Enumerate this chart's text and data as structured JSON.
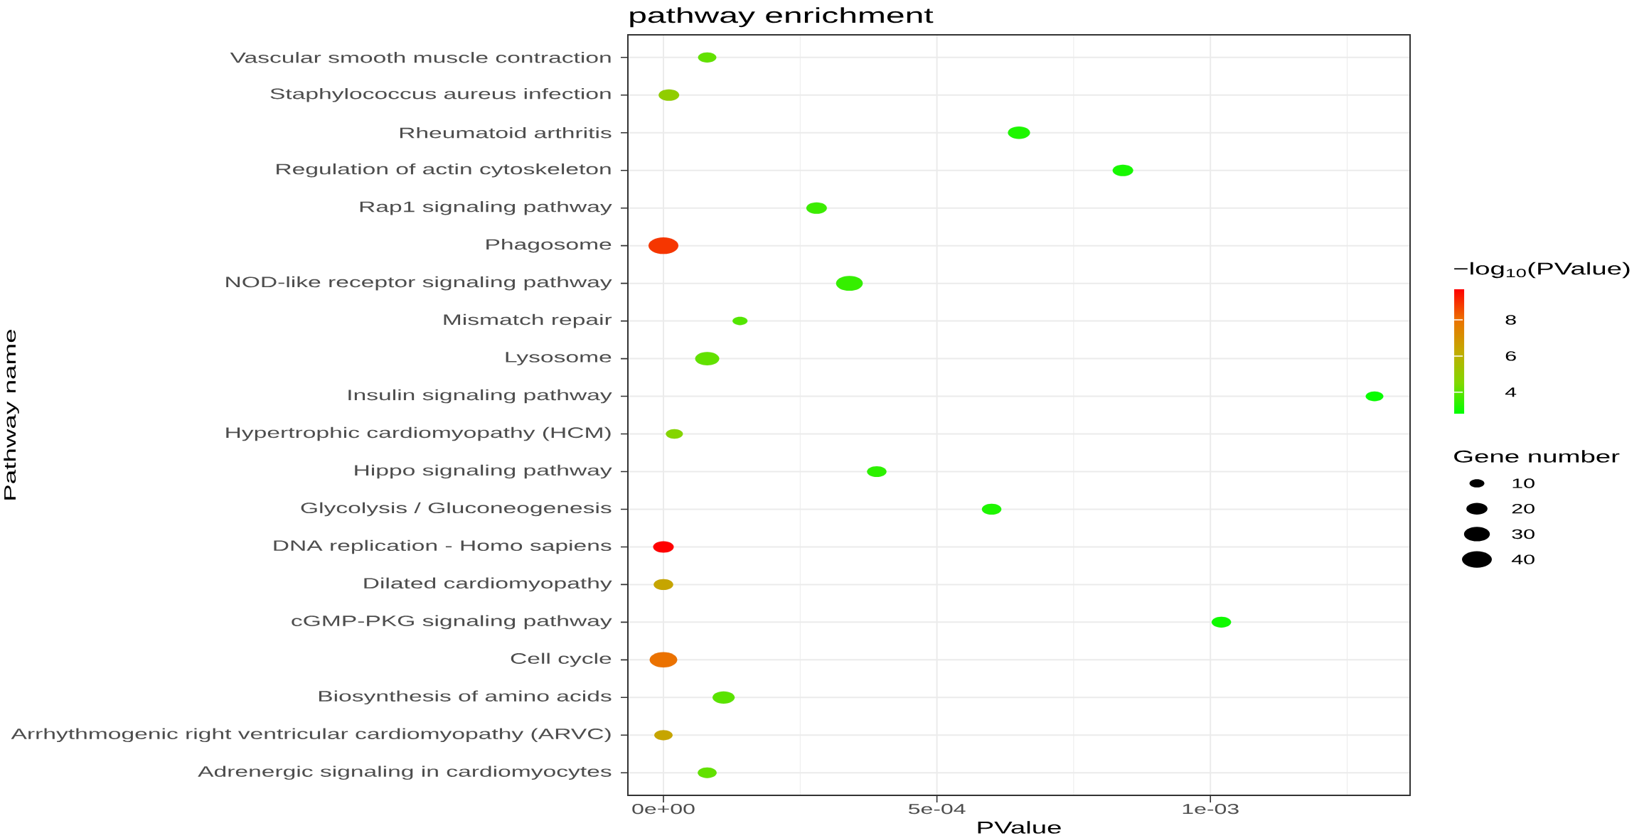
{
  "chart_data": {
    "type": "bubble",
    "title": "pathway enrichment",
    "xlabel": "PValue",
    "ylabel": "Pathway name",
    "clabel": "−log$_{10}$(PValue)",
    "legend_title": "Gene number",
    "orientation": "horizontal",
    "marker": "circle",
    "grid": true,
    "categories": [
      "Vascular smooth muscle contraction",
      "Staphylococcus aureus infection",
      "Rheumatoid arthritis",
      "Regulation of actin cytoskeleton",
      "Rap1 signaling pathway",
      "Phagosome",
      "NOD-like receptor signaling pathway",
      "Mismatch repair",
      "Lysosome",
      "Insulin signaling pathway",
      "Hypertrophic cardiomyopathy (HCM)",
      "Hippo signaling pathway",
      "Glycolysis / Gluconeogenesis",
      "DNA replication - Homo sapiens",
      "Dilated cardiomyopathy",
      "cGMP-PKG signaling pathway",
      "Cell cycle",
      "Biosynthesis of amino acids",
      "Arrhythmogenic right ventricular cardiomyopathy (ARVC)",
      "Adrenergic signaling in cardiomyocytes"
    ],
    "values": [
      8e-05,
      1e-05,
      0.00065,
      0.00084,
      0.00028,
      0,
      0.00034,
      0.00014,
      8e-05,
      0.0013,
      2e-05,
      0.00039,
      0.0006,
      0,
      0,
      0.00102,
      0,
      0.00011,
      0,
      8e-05
    ],
    "cvalues": [
      4.1,
      4.9,
      3.2,
      3.1,
      3.6,
      8.9,
      3.5,
      3.9,
      4.1,
      2.9,
      4.6,
      3.4,
      3.2,
      9.7,
      6.4,
      3.0,
      8.0,
      4.0,
      6.4,
      4.1
    ],
    "sizes": [
      15,
      19,
      22,
      19,
      19,
      40,
      32,
      10,
      26,
      14,
      13,
      17,
      17,
      19,
      17,
      17,
      34,
      22,
      15,
      16
    ],
    "size_legend": [
      10,
      20,
      30,
      40
    ],
    "xlim": [
      -6.5e-05,
      0.001365
    ],
    "xticks": [
      {
        "value": 0,
        "label": "0e+00"
      },
      {
        "value": 0.0005,
        "label": "5e-04"
      },
      {
        "value": 0.001,
        "label": "1e-03"
      }
    ],
    "clim": [
      2.8,
      9.7
    ],
    "cticks": [
      4,
      6,
      8
    ]
  }
}
